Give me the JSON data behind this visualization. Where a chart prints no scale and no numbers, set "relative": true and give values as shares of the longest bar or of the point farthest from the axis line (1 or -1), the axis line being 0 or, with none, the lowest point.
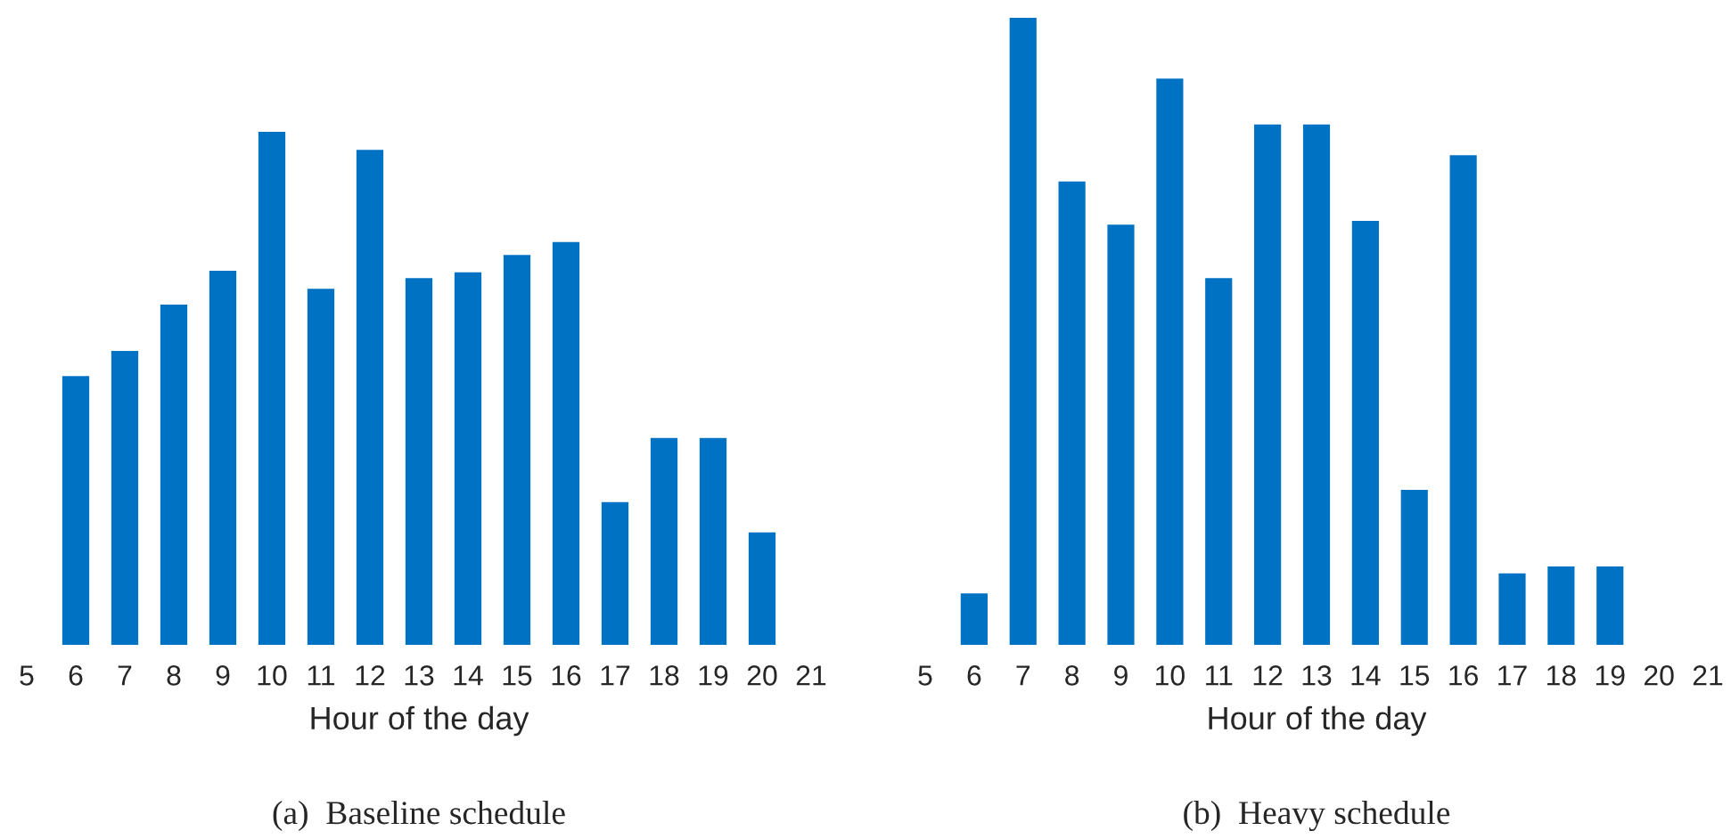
{
  "chart_data": [
    {
      "type": "bar",
      "relative": true,
      "x": [
        6,
        7,
        8,
        9,
        10,
        11,
        12,
        13,
        14,
        15,
        16,
        17,
        18,
        19,
        20
      ],
      "values": [
        0.524,
        0.573,
        0.663,
        0.729,
        1,
        0.694,
        0.965,
        0.715,
        0.726,
        0.76,
        0.785,
        0.278,
        0.403,
        0.403,
        0.219
      ],
      "color": "#0072c3",
      "xlim": [
        5,
        21
      ],
      "xticks": [
        5,
        6,
        7,
        8,
        9,
        10,
        11,
        12,
        13,
        14,
        15,
        16,
        17,
        18,
        19,
        20,
        21
      ],
      "xlabel": "Hour of the day",
      "annotations": [
        "(a)  Baseline schedule"
      ],
      "grid": false,
      "legend": false
    },
    {
      "type": "bar",
      "relative": true,
      "x": [
        6,
        7,
        8,
        9,
        10,
        11,
        12,
        13,
        14,
        15,
        16,
        17,
        18,
        19
      ],
      "values": [
        0.082,
        1,
        0.739,
        0.67,
        0.903,
        0.585,
        0.83,
        0.83,
        0.676,
        0.247,
        0.781,
        0.114,
        0.125,
        0.125
      ],
      "color": "#0072c3",
      "xlim": [
        5,
        21
      ],
      "xticks": [
        5,
        6,
        7,
        8,
        9,
        10,
        11,
        12,
        13,
        14,
        15,
        16,
        17,
        18,
        19,
        20,
        21
      ],
      "xlabel": "Hour of the day",
      "annotations": [
        "(b)  Heavy schedule"
      ],
      "grid": false,
      "legend": false
    }
  ]
}
